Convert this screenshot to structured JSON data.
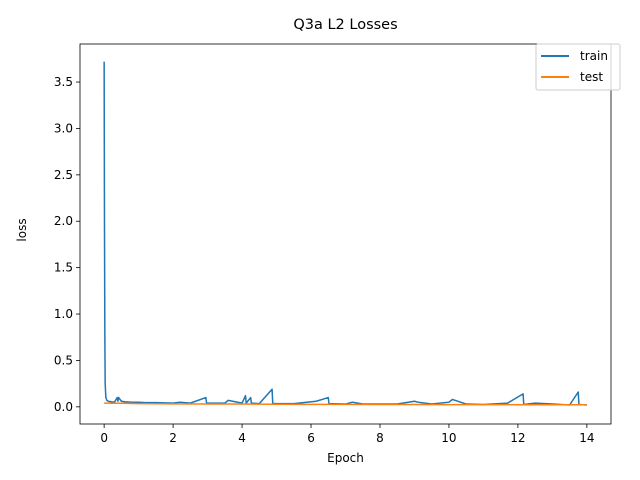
{
  "chart_data": {
    "type": "line",
    "title": "Q3a L2 Losses",
    "xlabel": "Epoch",
    "ylabel": "loss",
    "xlim": [
      -0.7,
      14.7
    ],
    "ylim": [
      -0.185,
      3.91
    ],
    "xticks": [
      0,
      2,
      4,
      6,
      8,
      10,
      12,
      14
    ],
    "xtick_labels": [
      "0",
      "2",
      "4",
      "6",
      "8",
      "10",
      "12",
      "14"
    ],
    "yticks": [
      0.0,
      0.5,
      1.0,
      1.5,
      2.0,
      2.5,
      3.0,
      3.5
    ],
    "ytick_labels": [
      "0.0",
      "0.5",
      "1.0",
      "1.5",
      "2.0",
      "2.5",
      "3.0",
      "3.5"
    ],
    "grid": false,
    "legend_position": "upper right",
    "series": [
      {
        "name": "train",
        "color": "#1f77b4",
        "x": [
          0,
          0.01,
          0.02,
          0.03,
          0.05,
          0.08,
          0.12,
          0.2,
          0.3,
          0.38,
          0.4,
          0.42,
          0.5,
          0.6,
          0.8,
          1.0,
          1.2,
          1.5,
          2.0,
          2.2,
          2.5,
          2.95,
          2.97,
          3.0,
          3.5,
          3.6,
          4.0,
          4.1,
          4.12,
          4.25,
          4.27,
          4.5,
          4.87,
          4.89,
          4.92,
          5.5,
          6.15,
          6.5,
          6.52,
          7.0,
          7.2,
          7.5,
          8.0,
          8.5,
          9.0,
          9.1,
          9.5,
          10.0,
          10.1,
          10.5,
          11.0,
          11.7,
          12.15,
          12.17,
          12.5,
          13.0,
          13.5,
          13.75,
          13.77,
          14.0
        ],
        "y": [
          3.72,
          2.0,
          0.8,
          0.25,
          0.1,
          0.07,
          0.06,
          0.055,
          0.05,
          0.1,
          0.06,
          0.1,
          0.06,
          0.055,
          0.05,
          0.05,
          0.045,
          0.045,
          0.04,
          0.05,
          0.04,
          0.1,
          0.04,
          0.04,
          0.04,
          0.07,
          0.04,
          0.12,
          0.04,
          0.1,
          0.04,
          0.035,
          0.19,
          0.04,
          0.035,
          0.035,
          0.06,
          0.1,
          0.035,
          0.03,
          0.05,
          0.03,
          0.03,
          0.03,
          0.06,
          0.05,
          0.03,
          0.05,
          0.08,
          0.03,
          0.025,
          0.04,
          0.14,
          0.025,
          0.04,
          0.03,
          0.02,
          0.16,
          0.025,
          0.02
        ]
      },
      {
        "name": "test",
        "color": "#ff7f0e",
        "x": [
          0,
          0.5,
          1,
          2,
          3,
          4,
          5,
          6,
          7,
          8,
          9,
          10,
          11,
          12,
          13,
          14
        ],
        "y": [
          0.04,
          0.038,
          0.035,
          0.032,
          0.03,
          0.03,
          0.028,
          0.027,
          0.026,
          0.025,
          0.025,
          0.024,
          0.024,
          0.023,
          0.023,
          0.022
        ]
      }
    ]
  }
}
